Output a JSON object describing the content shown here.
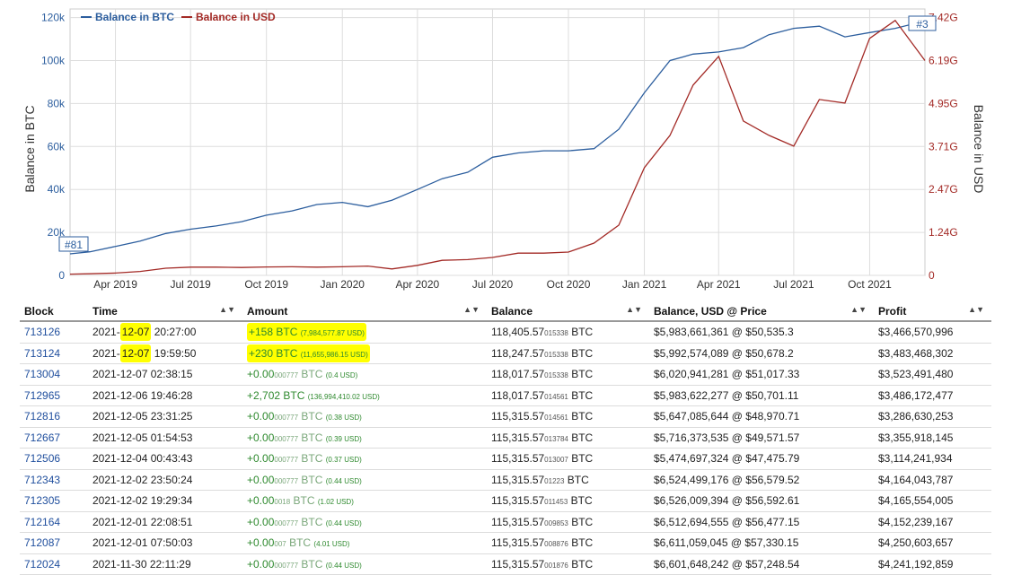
{
  "chart": {
    "legend": [
      {
        "label": "Balance in BTC",
        "color": "#2c5e9e"
      },
      {
        "label": "Balance in USD",
        "color": "#a32a26"
      }
    ],
    "ylabel_left": "Balance in BTC",
    "ylabel_right": "Balance in USD",
    "left_ticks": [
      "0",
      "20k",
      "40k",
      "60k",
      "80k",
      "100k",
      "120k"
    ],
    "right_ticks": [
      "0",
      "1.24G",
      "2.47G",
      "3.71G",
      "4.95G",
      "6.19G",
      "7.42G"
    ],
    "x_ticks": [
      "Apr 2019",
      "Jul 2019",
      "Oct 2019",
      "Jan 2020",
      "Apr 2020",
      "Jul 2020",
      "Oct 2020",
      "Jan 2021",
      "Apr 2021",
      "Jul 2021",
      "Oct 2021"
    ],
    "rank_start": "#81",
    "rank_end": "#3"
  },
  "chart_data": {
    "type": "line",
    "x_axis": "time",
    "xlim": [
      "2019-02-05",
      "2021-12-07"
    ],
    "ylim_left": [
      0,
      124000
    ],
    "ylim_right": [
      0,
      7420000000
    ],
    "grid": true,
    "legend_position": "top-left",
    "series": [
      {
        "name": "Balance in BTC",
        "axis": "left",
        "color": "#2c5e9e",
        "points": [
          [
            "2019-02-05",
            10000
          ],
          [
            "2019-03-01",
            11000
          ],
          [
            "2019-04-01",
            13500
          ],
          [
            "2019-05-01",
            16000
          ],
          [
            "2019-06-01",
            19500
          ],
          [
            "2019-07-01",
            21500
          ],
          [
            "2019-08-01",
            23000
          ],
          [
            "2019-09-01",
            25000
          ],
          [
            "2019-10-01",
            28000
          ],
          [
            "2019-11-01",
            30000
          ],
          [
            "2019-12-01",
            33000
          ],
          [
            "2020-01-01",
            34000
          ],
          [
            "2020-02-01",
            32000
          ],
          [
            "2020-03-01",
            35000
          ],
          [
            "2020-04-01",
            40000
          ],
          [
            "2020-05-01",
            45000
          ],
          [
            "2020-06-01",
            48000
          ],
          [
            "2020-07-01",
            55000
          ],
          [
            "2020-08-01",
            57000
          ],
          [
            "2020-09-01",
            58000
          ],
          [
            "2020-10-01",
            58000
          ],
          [
            "2020-11-01",
            59000
          ],
          [
            "2020-12-01",
            68000
          ],
          [
            "2021-01-01",
            85000
          ],
          [
            "2021-02-01",
            100000
          ],
          [
            "2021-03-01",
            103000
          ],
          [
            "2021-04-01",
            104000
          ],
          [
            "2021-05-01",
            106000
          ],
          [
            "2021-06-01",
            112000
          ],
          [
            "2021-07-01",
            115000
          ],
          [
            "2021-08-01",
            116000
          ],
          [
            "2021-09-01",
            111000
          ],
          [
            "2021-10-01",
            113000
          ],
          [
            "2021-11-01",
            115000
          ],
          [
            "2021-12-07",
            118405
          ]
        ]
      },
      {
        "name": "Balance in USD",
        "axis": "right",
        "color": "#a32a26",
        "points": [
          [
            "2019-02-05",
            35000000
          ],
          [
            "2019-03-01",
            45000000
          ],
          [
            "2019-04-01",
            65000000
          ],
          [
            "2019-05-01",
            110000000
          ],
          [
            "2019-06-01",
            200000000
          ],
          [
            "2019-07-01",
            230000000
          ],
          [
            "2019-08-01",
            230000000
          ],
          [
            "2019-09-01",
            220000000
          ],
          [
            "2019-10-01",
            235000000
          ],
          [
            "2019-11-01",
            240000000
          ],
          [
            "2019-12-01",
            230000000
          ],
          [
            "2020-01-01",
            240000000
          ],
          [
            "2020-02-01",
            260000000
          ],
          [
            "2020-03-01",
            180000000
          ],
          [
            "2020-04-01",
            280000000
          ],
          [
            "2020-05-01",
            420000000
          ],
          [
            "2020-06-01",
            440000000
          ],
          [
            "2020-07-01",
            500000000
          ],
          [
            "2020-08-01",
            620000000
          ],
          [
            "2020-09-01",
            620000000
          ],
          [
            "2020-10-01",
            650000000
          ],
          [
            "2020-11-01",
            900000000
          ],
          [
            "2020-12-01",
            1400000000
          ],
          [
            "2021-01-01",
            3000000000
          ],
          [
            "2021-02-01",
            3900000000
          ],
          [
            "2021-03-01",
            5300000000
          ],
          [
            "2021-04-01",
            6100000000
          ],
          [
            "2021-05-01",
            4300000000
          ],
          [
            "2021-06-01",
            3900000000
          ],
          [
            "2021-07-01",
            3600000000
          ],
          [
            "2021-08-01",
            4900000000
          ],
          [
            "2021-09-01",
            4800000000
          ],
          [
            "2021-10-01",
            6600000000
          ],
          [
            "2021-11-01",
            7100000000
          ],
          [
            "2021-12-07",
            5983661361
          ]
        ]
      }
    ]
  },
  "table": {
    "headers": [
      "Block",
      "Time",
      "Amount",
      "Balance",
      "Balance, USD @ Price",
      "Profit"
    ],
    "rows": [
      {
        "block": "713126",
        "time_pre": "2021-",
        "time_date": "12-07",
        "time_post": " 20:27:00",
        "amount_main": "+158 BTC",
        "amount_small": "(7,984,577.87 USD)",
        "balance_main": "118,405.57",
        "balance_small": "015338",
        "balance_unit": " BTC",
        "usd": "$5,983,661,361 @ $50,535.3",
        "profit": "$3,466,570,996",
        "highlight": true
      },
      {
        "block": "713124",
        "time_pre": "2021-",
        "time_date": "12-07",
        "time_post": " 19:59:50",
        "amount_main": "+230 BTC",
        "amount_small": "(11,655,986.15 USD)",
        "balance_main": "118,247.57",
        "balance_small": "015338",
        "balance_unit": " BTC",
        "usd": "$5,992,574,089 @ $50,678.2",
        "profit": "$3,483,468,302",
        "highlight": true
      },
      {
        "block": "713004",
        "time_pre": "2021-12-07 02:38:15",
        "amount_main": "+0.00",
        "amount_dim": "000777",
        "amount_unit": " BTC",
        "amount_small": "(0.4 USD)",
        "balance_main": "118,017.57",
        "balance_small": "015338",
        "balance_unit": " BTC",
        "usd": "$6,020,941,281 @ $51,017.33",
        "profit": "$3,523,491,480"
      },
      {
        "block": "712965",
        "time_pre": "2021-12-06 19:46:28",
        "amount_main": "+2,702 BTC",
        "amount_small": "(136,994,410.02 USD)",
        "balance_main": "118,017.57",
        "balance_small": "014561",
        "balance_unit": " BTC",
        "usd": "$5,983,622,277 @ $50,701.11",
        "profit": "$3,486,172,477"
      },
      {
        "block": "712816",
        "time_pre": "2021-12-05 23:31:25",
        "amount_main": "+0.00",
        "amount_dim": "000777",
        "amount_unit": " BTC",
        "amount_small": "(0.38 USD)",
        "balance_main": "115,315.57",
        "balance_small": "014561",
        "balance_unit": " BTC",
        "usd": "$5,647,085,644 @ $48,970.71",
        "profit": "$3,286,630,253"
      },
      {
        "block": "712667",
        "time_pre": "2021-12-05 01:54:53",
        "amount_main": "+0.00",
        "amount_dim": "000777",
        "amount_unit": " BTC",
        "amount_small": "(0.39 USD)",
        "balance_main": "115,315.57",
        "balance_small": "013784",
        "balance_unit": " BTC",
        "usd": "$5,716,373,535 @ $49,571.57",
        "profit": "$3,355,918,145"
      },
      {
        "block": "712506",
        "time_pre": "2021-12-04 00:43:43",
        "amount_main": "+0.00",
        "amount_dim": "000777",
        "amount_unit": " BTC",
        "amount_small": "(0.37 USD)",
        "balance_main": "115,315.57",
        "balance_small": "013007",
        "balance_unit": " BTC",
        "usd": "$5,474,697,324 @ $47,475.79",
        "profit": "$3,114,241,934"
      },
      {
        "block": "712343",
        "time_pre": "2021-12-02 23:50:24",
        "amount_main": "+0.00",
        "amount_dim": "000777",
        "amount_unit": " BTC",
        "amount_small": "(0.44 USD)",
        "balance_main": "115,315.57",
        "balance_small": "01223",
        "balance_unit": " BTC",
        "usd": "$6,524,499,176 @ $56,579.52",
        "profit": "$4,164,043,787"
      },
      {
        "block": "712305",
        "time_pre": "2021-12-02 19:29:34",
        "amount_main": "+0.00",
        "amount_dim": "0018",
        "amount_unit": " BTC",
        "amount_small": "(1.02 USD)",
        "balance_main": "115,315.57",
        "balance_small": "011453",
        "balance_unit": " BTC",
        "usd": "$6,526,009,394 @ $56,592.61",
        "profit": "$4,165,554,005"
      },
      {
        "block": "712164",
        "time_pre": "2021-12-01 22:08:51",
        "amount_main": "+0.00",
        "amount_dim": "000777",
        "amount_unit": " BTC",
        "amount_small": "(0.44 USD)",
        "balance_main": "115,315.57",
        "balance_small": "009853",
        "balance_unit": " BTC",
        "usd": "$6,512,694,555 @ $56,477.15",
        "profit": "$4,152,239,167"
      },
      {
        "block": "712087",
        "time_pre": "2021-12-01 07:50:03",
        "amount_main": "+0.00",
        "amount_dim": "007",
        "amount_unit": " BTC",
        "amount_small": "(4.01 USD)",
        "balance_main": "115,315.57",
        "balance_small": "008876",
        "balance_unit": " BTC",
        "usd": "$6,611,059,045 @ $57,330.15",
        "profit": "$4,250,603,657"
      },
      {
        "block": "712024",
        "time_pre": "2021-11-30 22:11:29",
        "amount_main": "+0.00",
        "amount_dim": "000777",
        "amount_unit": " BTC",
        "amount_small": "(0.44 USD)",
        "balance_main": "115,315.57",
        "balance_small": "001876",
        "balance_unit": " BTC",
        "usd": "$6,601,648,242 @ $57,248.54",
        "profit": "$4,241,192,859"
      }
    ]
  }
}
